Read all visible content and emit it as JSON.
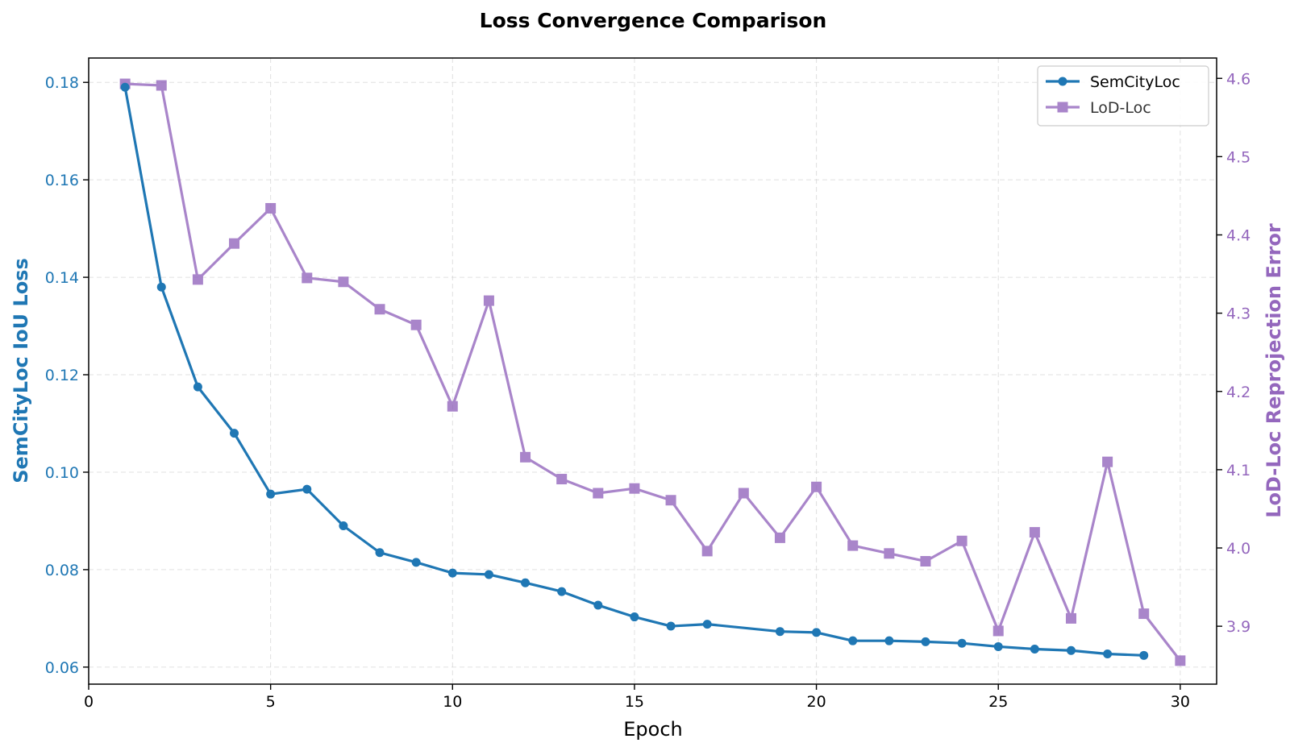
{
  "chart_data": {
    "type": "line",
    "title": "Loss Convergence Comparison",
    "xlabel": "Epoch",
    "ylabel_left": "SemCityLoc IoU Loss",
    "ylabel_right": "LoD-Loc Reprojection Error",
    "xlim": [
      0,
      31
    ],
    "ylim_left": [
      0.0565,
      0.185
    ],
    "ylim_right": [
      3.826,
      4.626
    ],
    "x_ticks": [
      0,
      5,
      10,
      15,
      20,
      25,
      30
    ],
    "y_ticks_left": [
      0.06,
      0.08,
      0.1,
      0.12,
      0.14,
      0.16,
      0.18
    ],
    "y_ticks_left_labels": [
      "0.06",
      "0.08",
      "0.10",
      "0.12",
      "0.14",
      "0.16",
      "0.18"
    ],
    "y_ticks_right": [
      3.9,
      4.0,
      4.1,
      4.2,
      4.3,
      4.4,
      4.5,
      4.6
    ],
    "y_ticks_right_labels": [
      "3.9",
      "4.0",
      "4.1",
      "4.2",
      "4.3",
      "4.4",
      "4.5",
      "4.6"
    ],
    "grid": true,
    "legend_position": "top-right",
    "colors": {
      "left_axis": "#1f77b4",
      "right_axis": "#9467bd"
    },
    "series": [
      {
        "name": "SemCityLoc",
        "axis": "left",
        "marker": "circle",
        "color": "#1f77b4",
        "x": [
          1,
          2,
          3,
          4,
          5,
          6,
          7,
          8,
          9,
          10,
          11,
          12,
          13,
          14,
          15,
          16,
          17,
          19,
          20,
          21,
          22,
          23,
          24,
          25,
          26,
          27,
          28,
          29
        ],
        "y": [
          0.179,
          0.138,
          0.1175,
          0.108,
          0.0955,
          0.0965,
          0.089,
          0.0835,
          0.0815,
          0.0793,
          0.079,
          0.0773,
          0.0755,
          0.0727,
          0.0703,
          0.0684,
          0.0688,
          0.0673,
          0.0671,
          0.0654,
          0.0654,
          0.0652,
          0.0649,
          0.0642,
          0.0637,
          0.0634,
          0.0627,
          0.0624
        ]
      },
      {
        "name": "LoD-Loc",
        "axis": "right",
        "marker": "square",
        "color": "#9467bd",
        "x": [
          1,
          2,
          3,
          4,
          5,
          6,
          7,
          8,
          9,
          10,
          11,
          12,
          13,
          14,
          15,
          16,
          17,
          18,
          19,
          20,
          21,
          22,
          23,
          24,
          25,
          26,
          27,
          28,
          29,
          30
        ],
        "y": [
          4.593,
          4.591,
          4.343,
          4.389,
          4.434,
          4.345,
          4.34,
          4.305,
          4.285,
          4.181,
          4.316,
          4.116,
          4.088,
          4.07,
          4.076,
          4.061,
          3.996,
          4.07,
          4.013,
          4.078,
          4.003,
          3.993,
          3.983,
          4.009,
          3.894,
          4.02,
          3.91,
          4.11,
          3.916,
          3.856
        ]
      }
    ]
  }
}
